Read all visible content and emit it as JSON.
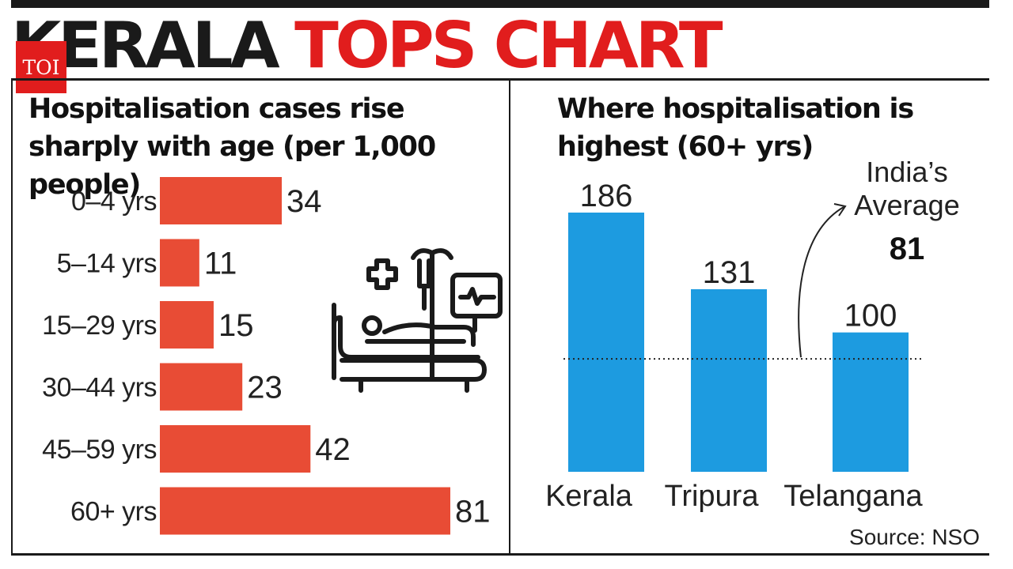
{
  "headline": {
    "word1": "KERALA",
    "word2": "TOPS CHART"
  },
  "logo": {
    "text": "TOI"
  },
  "colors": {
    "bar_left": "#e84c35",
    "bar_right": "#1d9be0",
    "headline_red": "#e11d1d"
  },
  "icons": {
    "illustration": "hospital-bed-icon"
  },
  "source": "Source: NSO",
  "chart_data": [
    {
      "type": "bar",
      "orientation": "horizontal",
      "title": "Hospitalisation cases rise sharply with age (per 1,000 people)",
      "categories": [
        "0–4 yrs",
        "5–14 yrs",
        "15–29 yrs",
        "30–44 yrs",
        "45–59 yrs",
        "60+ yrs"
      ],
      "values": [
        34,
        11,
        15,
        23,
        42,
        81
      ],
      "data_labels": [
        "34",
        "11",
        "15",
        "23",
        "42",
        "81"
      ],
      "grid": false
    },
    {
      "type": "bar",
      "orientation": "vertical",
      "title": "Where hospitalisation is highest (60+ yrs)",
      "categories": [
        "Kerala",
        "Tripura",
        "Telangana"
      ],
      "values": [
        186,
        131,
        100
      ],
      "data_labels": [
        "186",
        "131",
        "100"
      ],
      "reference_line": {
        "value": 81,
        "label_line1": "India’s",
        "label_line2": "Average",
        "label_value": "81"
      },
      "grid": false
    }
  ]
}
